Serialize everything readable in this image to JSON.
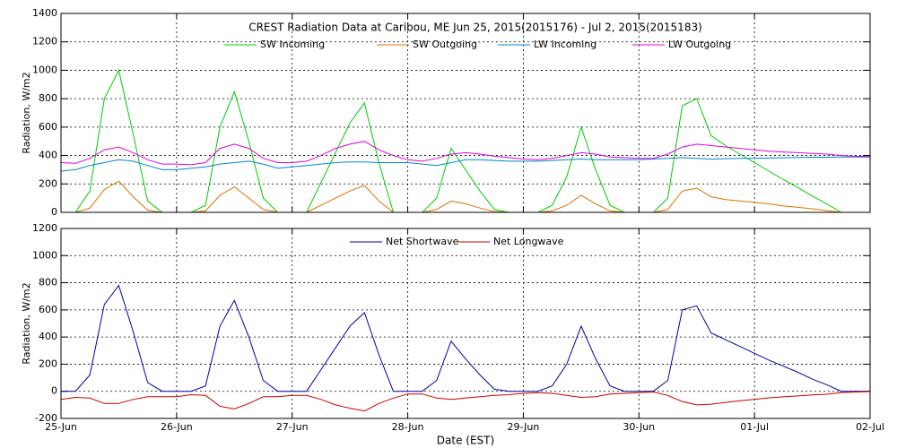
{
  "chart_data": [
    {
      "type": "line",
      "title": "CREST Radiation Data at Caribou, ME   Jun 25, 2015(2015176) - Jul  2, 2015(2015183)",
      "ylabel": "Radiation, W/m2",
      "xlim": [
        0,
        7
      ],
      "xticks": [
        0,
        1,
        2,
        3,
        4,
        5,
        6,
        7
      ],
      "ylim": [
        0,
        1400
      ],
      "yticks": [
        0,
        200,
        400,
        600,
        800,
        1000,
        1200,
        1400
      ],
      "grid": true,
      "x": [
        0,
        0.125,
        0.25,
        0.375,
        0.5,
        0.625,
        0.75,
        0.875,
        1,
        1.125,
        1.25,
        1.375,
        1.5,
        1.625,
        1.75,
        1.875,
        2,
        2.125,
        2.25,
        2.375,
        2.5,
        2.625,
        2.75,
        2.875,
        3,
        3.125,
        3.25,
        3.375,
        3.5,
        3.625,
        3.75,
        3.875,
        4,
        4.125,
        4.25,
        4.375,
        4.5,
        4.625,
        4.75,
        4.875,
        5,
        5.125,
        5.25,
        5.375,
        5.5,
        5.625,
        5.75,
        5.875,
        6,
        6.125,
        6.25,
        6.375,
        6.5,
        6.625,
        6.75,
        6.875,
        7
      ],
      "series": [
        {
          "name": "SW Incoming",
          "color": "#00cc00",
          "values": [
            0,
            0,
            150,
            800,
            1000,
            550,
            80,
            0,
            0,
            0,
            50,
            600,
            850,
            500,
            100,
            0,
            0,
            0,
            210,
            420,
            630,
            770,
            350,
            0,
            0,
            0,
            100,
            450,
            300,
            150,
            20,
            0,
            0,
            0,
            50,
            250,
            600,
            300,
            50,
            0,
            0,
            0,
            100,
            750,
            800,
            540,
            470,
            410,
            350,
            290,
            230,
            175,
            115,
            60,
            0,
            0,
            0
          ]
        },
        {
          "name": "SW Outgoing",
          "color": "#e07000",
          "values": [
            0,
            0,
            30,
            160,
            220,
            110,
            15,
            0,
            0,
            0,
            10,
            120,
            180,
            100,
            20,
            0,
            0,
            0,
            50,
            100,
            150,
            190,
            80,
            0,
            0,
            0,
            20,
            80,
            60,
            30,
            5,
            0,
            0,
            0,
            10,
            50,
            120,
            60,
            10,
            0,
            0,
            0,
            20,
            150,
            170,
            110,
            90,
            80,
            70,
            60,
            45,
            35,
            25,
            12,
            0,
            0,
            0
          ]
        },
        {
          "name": "LW Incoming",
          "color": "#0088cc",
          "values": [
            290,
            300,
            330,
            350,
            370,
            360,
            330,
            300,
            300,
            310,
            320,
            340,
            350,
            360,
            340,
            310,
            320,
            330,
            340,
            350,
            355,
            355,
            350,
            350,
            350,
            340,
            330,
            350,
            370,
            370,
            365,
            360,
            360,
            360,
            365,
            370,
            375,
            370,
            370,
            370,
            370,
            375,
            380,
            385,
            380,
            375,
            378,
            380,
            380,
            382,
            384,
            386,
            388,
            388,
            390,
            390,
            390
          ]
        },
        {
          "name": "LW Outgoing",
          "color": "#e000e0",
          "values": [
            350,
            345,
            380,
            440,
            460,
            420,
            370,
            340,
            340,
            335,
            350,
            450,
            480,
            450,
            380,
            350,
            350,
            360,
            400,
            450,
            480,
            500,
            440,
            400,
            370,
            360,
            380,
            410,
            420,
            410,
            395,
            385,
            375,
            370,
            380,
            400,
            420,
            410,
            390,
            385,
            380,
            380,
            410,
            460,
            480,
            470,
            460,
            450,
            440,
            430,
            425,
            420,
            415,
            410,
            400,
            395,
            392
          ]
        }
      ]
    },
    {
      "type": "line",
      "ylabel": "Radiation, W/m2",
      "xlabel": "Date (EST)",
      "xlim": [
        0,
        7
      ],
      "xticks": [
        {
          "value": 0,
          "label": "25-Jun"
        },
        {
          "value": 1,
          "label": "26-Jun"
        },
        {
          "value": 2,
          "label": "27-Jun"
        },
        {
          "value": 3,
          "label": "28-Jun"
        },
        {
          "value": 4,
          "label": "29-Jun"
        },
        {
          "value": 5,
          "label": "30-Jun"
        },
        {
          "value": 6,
          "label": "01-Jul"
        },
        {
          "value": 7,
          "label": "02-Jul"
        }
      ],
      "ylim": [
        -200,
        1200
      ],
      "yticks": [
        -200,
        0,
        200,
        400,
        600,
        800,
        1000,
        1200
      ],
      "grid": true,
      "x": [
        0,
        0.125,
        0.25,
        0.375,
        0.5,
        0.625,
        0.75,
        0.875,
        1,
        1.125,
        1.25,
        1.375,
        1.5,
        1.625,
        1.75,
        1.875,
        2,
        2.125,
        2.25,
        2.375,
        2.5,
        2.625,
        2.75,
        2.875,
        3,
        3.125,
        3.25,
        3.375,
        3.5,
        3.625,
        3.75,
        3.875,
        4,
        4.125,
        4.25,
        4.375,
        4.5,
        4.625,
        4.75,
        4.875,
        5,
        5.125,
        5.25,
        5.375,
        5.5,
        5.625,
        5.75,
        5.875,
        6,
        6.125,
        6.25,
        6.375,
        6.5,
        6.625,
        6.75,
        6.875,
        7
      ],
      "series": [
        {
          "name": "Net Shortwave",
          "color": "#0000aa",
          "values": [
            0,
            0,
            120,
            640,
            780,
            440,
            65,
            0,
            0,
            0,
            40,
            480,
            670,
            400,
            80,
            0,
            0,
            0,
            160,
            320,
            480,
            580,
            270,
            0,
            0,
            0,
            80,
            370,
            240,
            120,
            15,
            0,
            0,
            0,
            40,
            200,
            480,
            240,
            40,
            0,
            0,
            0,
            80,
            600,
            630,
            430,
            380,
            330,
            280,
            230,
            185,
            140,
            90,
            48,
            0,
            0,
            0
          ]
        },
        {
          "name": "Net Longwave",
          "color": "#cc0000",
          "values": [
            -60,
            -45,
            -50,
            -90,
            -90,
            -60,
            -40,
            -40,
            -40,
            -25,
            -30,
            -110,
            -130,
            -90,
            -40,
            -40,
            -30,
            -30,
            -60,
            -100,
            -125,
            -145,
            -90,
            -50,
            -20,
            -20,
            -50,
            -60,
            -50,
            -40,
            -30,
            -25,
            -15,
            -10,
            -15,
            -30,
            -45,
            -40,
            -20,
            -15,
            -10,
            -5,
            -30,
            -75,
            -100,
            -95,
            -82,
            -70,
            -60,
            -48,
            -41,
            -34,
            -27,
            -22,
            -10,
            -5,
            -2
          ]
        }
      ]
    }
  ]
}
